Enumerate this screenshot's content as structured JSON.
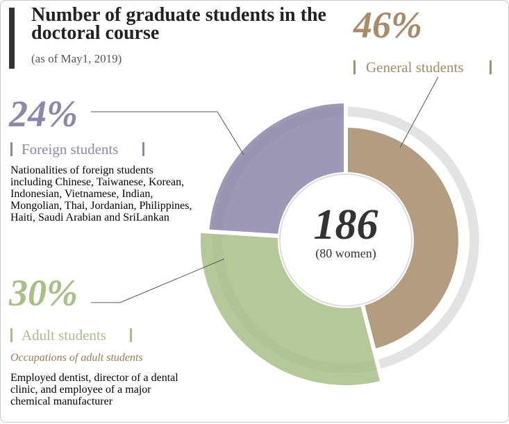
{
  "chart_data": {
    "type": "pie",
    "title": "Number of graduate students in the doctoral course",
    "subtitle": "(as of May1, 2019)",
    "categories": [
      "General students",
      "Adult students",
      "Foreign students"
    ],
    "values": [
      46,
      30,
      24
    ],
    "value_labels": [
      "46%",
      "30%",
      "24%"
    ],
    "colors": [
      "#a88b6b",
      "#a8bf88",
      "#8e87ab"
    ],
    "center_label": 186,
    "center_sublabel": "(80 women)",
    "foreign_note": "Nationalities of foreign students including Chinese, Taiwanese, Korean, Indonesian, Vietnamese, Indian, Mongolian, Thai, Jordanian, Philippines, Haiti, Saudi Arabian and SriLankan",
    "adult_note_heading": "Occupations of adult students",
    "adult_note": "Employed dentist, director of a dental clinic, and employee of a major chemical manufacturer"
  }
}
